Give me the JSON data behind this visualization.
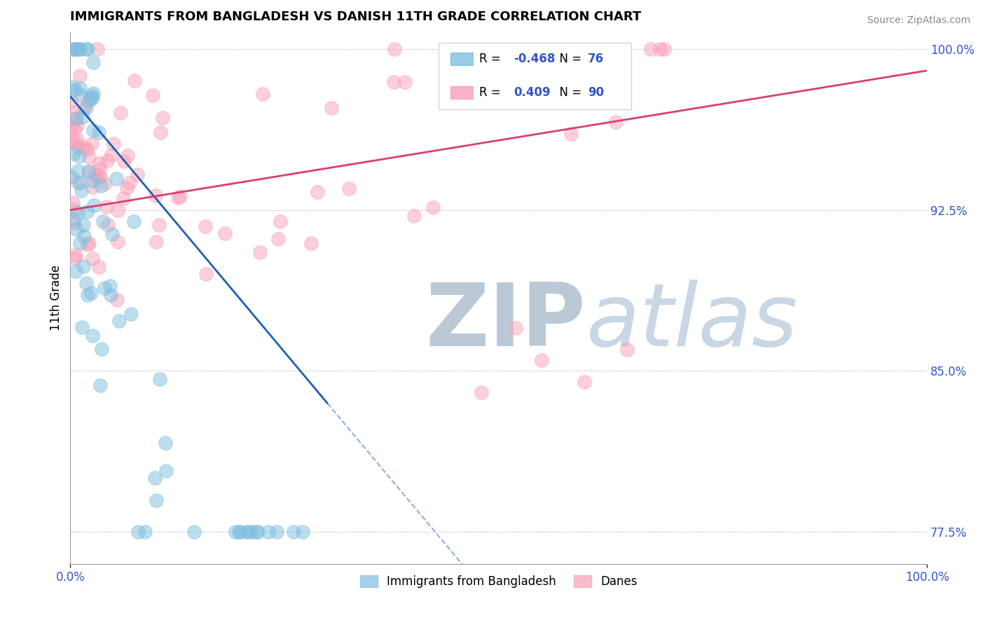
{
  "title": "IMMIGRANTS FROM BANGLADESH VS DANISH 11TH GRADE CORRELATION CHART",
  "source": "Source: ZipAtlas.com",
  "ylabel": "11th Grade",
  "right_yticks": [
    0.775,
    0.85,
    0.925,
    1.0
  ],
  "right_yticklabels": [
    "77.5%",
    "85.0%",
    "92.5%",
    "100.0%"
  ],
  "blue_R": -0.468,
  "blue_N": 76,
  "pink_R": 0.409,
  "pink_N": 90,
  "blue_color": "#7fbfdf",
  "pink_color": "#f8a0b8",
  "blue_line_color": "#2060b0",
  "pink_line_color": "#d84070",
  "watermark_zip": "ZIP",
  "watermark_atlas": "atlas",
  "watermark_zip_color": "#b0c0d0",
  "watermark_atlas_color": "#c0cfe0",
  "legend_label_blue": "Immigrants from Bangladesh",
  "legend_label_pink": "Danes",
  "xmin": 0.0,
  "xmax": 1.0,
  "ymin": 0.76,
  "ymax": 1.008,
  "blue_line_x0": 0.0,
  "blue_line_y0": 0.978,
  "blue_line_x1": 0.3,
  "blue_line_y1": 0.835,
  "pink_line_x0": 0.0,
  "pink_line_y0": 0.925,
  "pink_line_x1": 1.0,
  "pink_line_y1": 0.99
}
